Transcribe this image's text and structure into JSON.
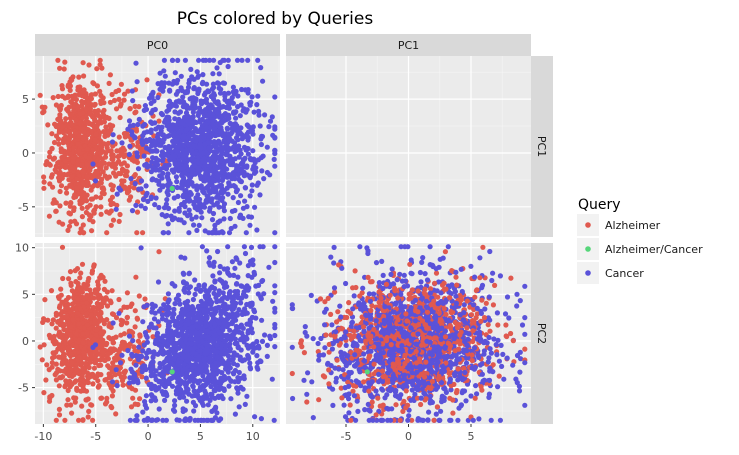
{
  "chart_data": {
    "type": "scatter",
    "title": "PCs colored by Queries",
    "facet_columns": [
      "PC0",
      "PC1"
    ],
    "facet_rows": [
      "PC1",
      "PC2"
    ],
    "panels": [
      {
        "col": "PC0",
        "row": "PC1",
        "x": "PC0",
        "y": "PC1",
        "xlim": [
          -10.8,
          12.6
        ],
        "ylim": [
          -7.8,
          9.0
        ]
      },
      {
        "col": "PC1",
        "row": "PC1",
        "x": "PC1",
        "y": "PC1",
        "xlim": [
          -9.8,
          9.8
        ],
        "ylim": [
          -7.8,
          9.0
        ],
        "empty": true
      },
      {
        "col": "PC0",
        "row": "PC2",
        "x": "PC0",
        "y": "PC2",
        "xlim": [
          -10.8,
          12.6
        ],
        "ylim": [
          -8.9,
          10.5
        ]
      },
      {
        "col": "PC1",
        "row": "PC2",
        "x": "PC1",
        "y": "PC2",
        "xlim": [
          -9.8,
          9.8
        ],
        "ylim": [
          -8.9,
          10.5
        ]
      }
    ],
    "x_ticks_left": [
      "-10",
      "-5",
      "0",
      "5",
      "10"
    ],
    "x_ticks_right": [
      "-5",
      "0",
      "5"
    ],
    "y_ticks_top": [
      "5",
      "0",
      "-5"
    ],
    "y_ticks_bottom": [
      "10",
      "5",
      "0",
      "-5"
    ],
    "legend": {
      "title": "Query",
      "placement": "right",
      "entries": [
        {
          "label": "Alzheimer",
          "color": "#e0594f"
        },
        {
          "label": "Alzheimer/Cancer",
          "color": "#56d67a"
        },
        {
          "label": "Cancer",
          "color": "#5a52d9"
        }
      ]
    },
    "series": [
      {
        "name": "Alzheimer",
        "color": "#e0594f",
        "clusters": [
          {
            "pc0_mean": -6.5,
            "pc0_sd": 1.4,
            "pc1_mean": 0.5,
            "pc1_sd": 3.3,
            "pc2_mean": 0.5,
            "pc2_sd": 3.0,
            "count": 700
          },
          {
            "pc0_mean": -2.5,
            "pc0_sd": 1.8,
            "pc1_mean": 0.0,
            "pc1_sd": 3.5,
            "pc2_mean": -1.0,
            "pc2_sd": 2.8,
            "count": 200
          }
        ]
      },
      {
        "name": "Alzheimer/Cancer",
        "color": "#56d67a",
        "points": [
          {
            "pc0": 2.3,
            "pc1": -3.3,
            "pc2": -3.3
          }
        ]
      },
      {
        "name": "Cancer",
        "color": "#5a52d9",
        "clusters": [
          {
            "pc0_mean": 5.0,
            "pc0_sd": 3.0,
            "pc1_mean": 0.5,
            "pc1_sd": 3.3,
            "pc2_mean": -0.5,
            "pc2_sd": 3.6,
            "count": 1300
          }
        ]
      }
    ]
  }
}
